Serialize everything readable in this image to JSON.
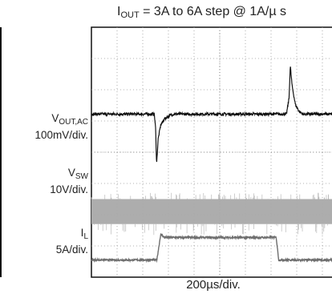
{
  "chart_data": {
    "type": "line",
    "title_prefix": "I",
    "title_sub": "OUT",
    "title_rest": " = 3A to 6A step @ 1A/µ s",
    "xlabel": "200µs/div.",
    "x_divisions": 10,
    "y_divisions": 8,
    "grid": true,
    "channels": [
      {
        "name": "V_OUT,AC",
        "label_main": "V",
        "label_sub": "OUT,AC",
        "scale_label": "100mV/div.",
        "color": "#111111",
        "baseline_div": 5.22,
        "noise_div": 0.045,
        "points": [
          [
            0,
            0
          ],
          [
            2.45,
            0
          ],
          [
            2.5,
            -0.45
          ],
          [
            2.54,
            -1.6
          ],
          [
            2.6,
            -0.8
          ],
          [
            2.7,
            -0.35
          ],
          [
            2.85,
            -0.15
          ],
          [
            3.05,
            -0.05
          ],
          [
            3.2,
            0
          ],
          [
            7.6,
            0
          ],
          [
            7.7,
            0.5
          ],
          [
            7.75,
            1.55
          ],
          [
            7.82,
            0.9
          ],
          [
            7.95,
            0.3
          ],
          [
            8.1,
            0.08
          ],
          [
            8.25,
            0
          ],
          [
            10,
            0
          ]
        ]
      },
      {
        "name": "V_SW",
        "label_main": "V",
        "label_sub": "SW",
        "scale_label": "10V/div.",
        "color": "#a9a9a9",
        "band_top_div": 2.5,
        "band_bottom_div": 1.7,
        "spike_top_div": 2.7,
        "spike_bottom_div": 1.35
      },
      {
        "name": "I_L",
        "label_main": "I",
        "label_sub": "L",
        "scale_label": "5A/div.",
        "color": "#6e6e6e",
        "baseline_div": 0.55,
        "noise_div": 0.03,
        "points": [
          [
            0,
            0
          ],
          [
            2.55,
            0
          ],
          [
            2.7,
            0.82
          ],
          [
            2.85,
            0.72
          ],
          [
            7.2,
            0.72
          ],
          [
            7.3,
            0
          ],
          [
            10,
            0
          ]
        ]
      }
    ]
  }
}
